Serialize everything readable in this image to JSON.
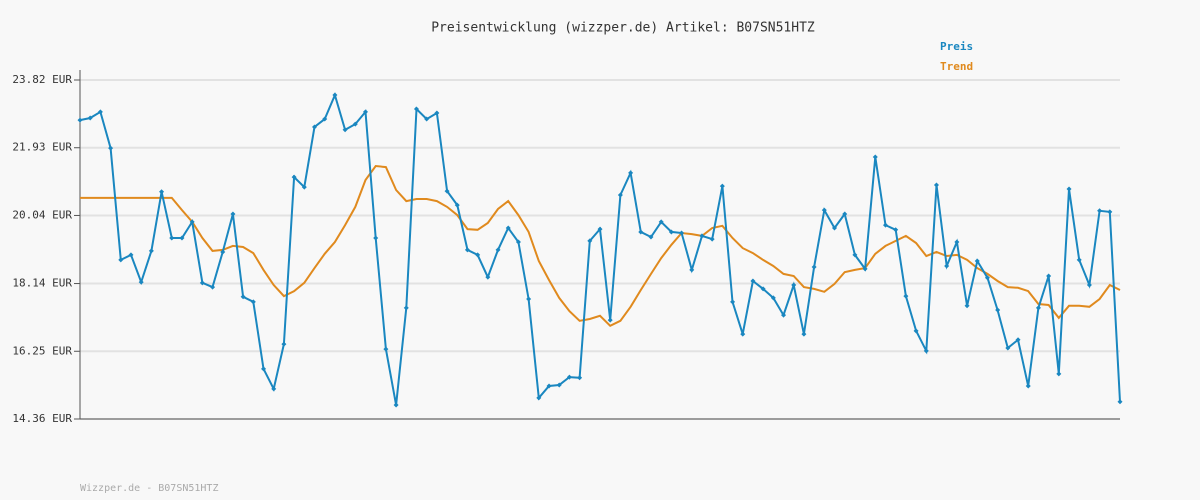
{
  "chart_data": {
    "type": "line",
    "title": "Preisentwicklung (wizzper.de) Artikel: B07SN51HTZ",
    "footer": "Wizzper.de - B07SN51HTZ",
    "legend": "top-right",
    "grid": true,
    "ylim": [
      14.36,
      23.82
    ],
    "yticks": [
      {
        "value": 14.36,
        "label": "14.36 EUR"
      },
      {
        "value": 16.25,
        "label": "16.25 EUR"
      },
      {
        "value": 18.14,
        "label": "18.14 EUR"
      },
      {
        "value": 20.04,
        "label": "20.04 EUR"
      },
      {
        "value": 21.93,
        "label": "21.93 EUR"
      },
      {
        "value": 23.82,
        "label": "23.82 EUR"
      }
    ],
    "series": [
      {
        "name": "Preis",
        "color": "#1a87c0",
        "markers": true,
        "values": [
          22.7,
          22.76,
          22.93,
          21.92,
          18.8,
          18.94,
          18.18,
          19.05,
          20.7,
          19.41,
          19.41,
          19.86,
          18.16,
          18.04,
          19.02,
          20.08,
          17.77,
          17.63,
          15.76,
          15.2,
          16.45,
          21.11,
          20.83,
          22.51,
          22.73,
          23.4,
          22.43,
          22.59,
          22.93,
          19.41,
          16.31,
          14.75,
          17.46,
          23.01,
          22.73,
          22.9,
          20.72,
          20.33,
          19.08,
          18.94,
          18.32,
          19.08,
          19.69,
          19.3,
          17.71,
          14.95,
          15.28,
          15.31,
          15.53,
          15.51,
          19.33,
          19.66,
          17.12,
          20.61,
          21.23,
          19.58,
          19.44,
          19.86,
          19.58,
          19.55,
          18.52,
          19.47,
          19.38,
          20.86,
          17.63,
          16.73,
          18.21,
          17.99,
          17.74,
          17.26,
          18.1,
          16.73,
          18.6,
          20.19,
          19.69,
          20.08,
          18.94,
          18.55,
          21.67,
          19.77,
          19.64,
          17.79,
          16.82,
          16.26,
          20.89,
          18.63,
          19.3,
          17.52,
          18.77,
          18.3,
          17.4,
          16.34,
          16.57,
          15.28,
          17.46,
          18.35,
          15.62,
          20.78,
          18.8,
          18.1,
          20.17,
          20.14,
          14.84
        ]
      },
      {
        "name": "Trend",
        "color": "#e08a1e",
        "markers": false,
        "values": [
          20.53,
          20.53,
          20.53,
          20.53,
          20.53,
          20.53,
          20.53,
          20.53,
          20.53,
          20.53,
          20.19,
          19.86,
          19.41,
          19.05,
          19.08,
          19.19,
          19.16,
          18.99,
          18.52,
          18.1,
          17.79,
          17.93,
          18.16,
          18.57,
          18.97,
          19.3,
          19.77,
          20.28,
          21.03,
          21.42,
          21.39,
          20.75,
          20.44,
          20.5,
          20.5,
          20.44,
          20.28,
          20.05,
          19.66,
          19.64,
          19.83,
          20.22,
          20.44,
          20.05,
          19.58,
          18.77,
          18.24,
          17.74,
          17.37,
          17.1,
          17.15,
          17.24,
          16.96,
          17.1,
          17.49,
          17.96,
          18.41,
          18.85,
          19.22,
          19.55,
          19.52,
          19.47,
          19.69,
          19.75,
          19.41,
          19.13,
          18.99,
          18.8,
          18.63,
          18.41,
          18.35,
          18.04,
          17.99,
          17.91,
          18.13,
          18.46,
          18.52,
          18.57,
          18.97,
          19.19,
          19.33,
          19.47,
          19.27,
          18.91,
          19.02,
          18.91,
          18.94,
          18.8,
          18.57,
          18.41,
          18.21,
          18.04,
          18.02,
          17.93,
          17.57,
          17.54,
          17.18,
          17.52,
          17.52,
          17.49,
          17.71,
          18.1,
          17.96
        ]
      }
    ]
  }
}
